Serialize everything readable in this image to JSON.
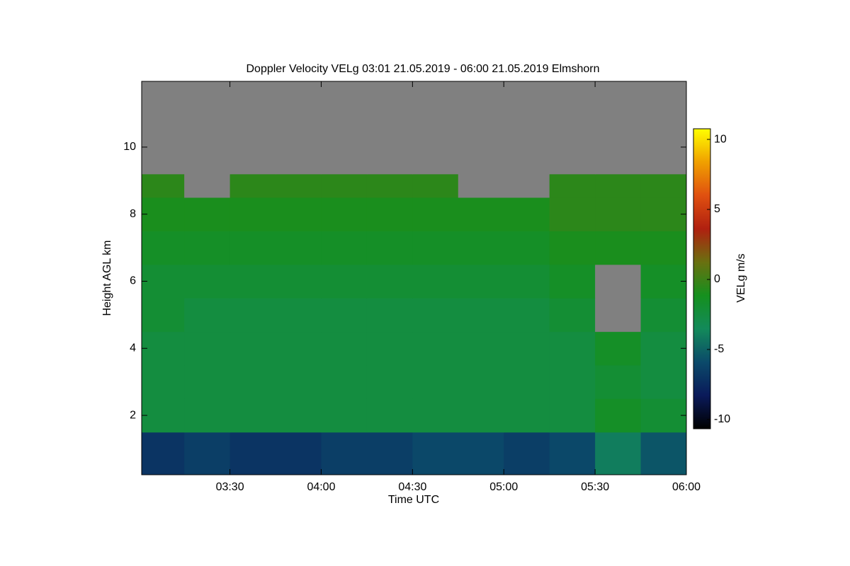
{
  "chart_data": {
    "type": "heatmap",
    "title": "Doppler Velocity VELg   03:01 21.05.2019 - 06:00 21.05.2019 Elmshorn",
    "xlabel": "Time UTC",
    "ylabel": "Height AGL km",
    "colorbar_label": "VELg m/s",
    "xlim": [
      181,
      360
    ],
    "xticks": [
      {
        "value": 210,
        "label": "03:30"
      },
      {
        "value": 240,
        "label": "04:00"
      },
      {
        "value": 270,
        "label": "04:30"
      },
      {
        "value": 300,
        "label": "05:00"
      },
      {
        "value": 330,
        "label": "05:30"
      },
      {
        "value": 360,
        "label": "06:00"
      }
    ],
    "ylim": [
      0.23,
      11.96
    ],
    "yticks": [
      2,
      4,
      6,
      8,
      10
    ],
    "zlim": [
      -10.66,
      10.76
    ],
    "zticks": [
      -10,
      -5,
      0,
      5,
      10
    ],
    "colormap": [
      "#000000",
      "#0a1a5a",
      "#0b4a6a",
      "#138a5a",
      "#15901e",
      "#6a7010",
      "#b02010",
      "#e05010",
      "#f0a000",
      "#ffff00"
    ],
    "null_color": "#808080",
    "x_bins": [
      181,
      195,
      210,
      225,
      240,
      255,
      270,
      285,
      300,
      315,
      330,
      345,
      360
    ],
    "y_bins": [
      0.23,
      1.5,
      2.5,
      3.5,
      4.5,
      5.5,
      6.5,
      7.5,
      8.5,
      9.2,
      11.96
    ],
    "values": [
      [
        -7,
        -6.5,
        -7,
        -7,
        -6.5,
        -6.5,
        -6,
        -6,
        -6.5,
        -6,
        -4,
        -5.5
      ],
      [
        -2.5,
        -2.5,
        -2.5,
        -2.5,
        -2.5,
        -2.5,
        -2.5,
        -2.5,
        -2.5,
        -2.5,
        -1.5,
        -2
      ],
      [
        -2.5,
        -2.5,
        -2.5,
        -2.5,
        -2.5,
        -2.5,
        -2.5,
        -2.5,
        -2.5,
        -2.5,
        -2,
        -2.5
      ],
      [
        -2.5,
        -2.5,
        -2.5,
        -2.5,
        -2.5,
        -2.5,
        -2.5,
        -2.5,
        -2.5,
        -2.5,
        -1.5,
        -2.5
      ],
      [
        -2,
        -2.5,
        -2.5,
        -2.5,
        -2.5,
        -2.5,
        -2.5,
        -2.5,
        -2.5,
        -2,
        null,
        -2
      ],
      [
        -2,
        -2,
        -2,
        -2,
        -2,
        -2,
        -2,
        -2,
        -2,
        -1.5,
        null,
        -1.5
      ],
      [
        -1.5,
        -1.5,
        -1.5,
        -1.5,
        -1.5,
        -1.5,
        -1.5,
        -1.5,
        -1.5,
        -1,
        -1,
        -1
      ],
      [
        -1,
        -1,
        -1,
        -1,
        -1,
        -1,
        -1,
        -1,
        -1,
        -0.5,
        -0.5,
        -0.5
      ],
      [
        -0.5,
        null,
        -0.5,
        -0.5,
        -0.5,
        -0.5,
        -0.5,
        null,
        null,
        -0.5,
        -0.5,
        -0.5
      ],
      [
        null,
        null,
        null,
        null,
        null,
        null,
        null,
        null,
        null,
        null,
        null,
        null
      ]
    ]
  }
}
